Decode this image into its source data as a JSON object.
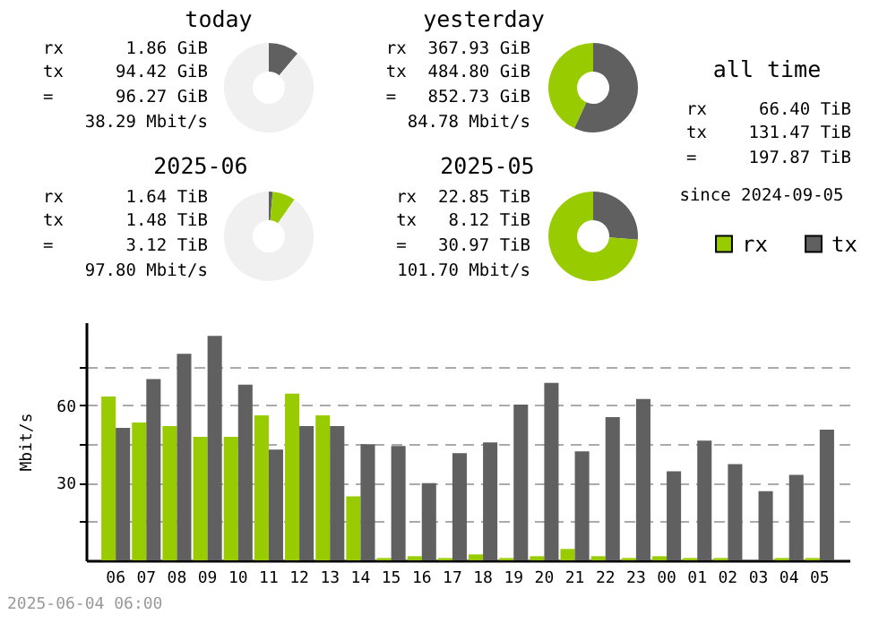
{
  "chart_data": [
    {
      "type": "donut",
      "title": "today",
      "categories": [
        null,
        null,
        null
      ],
      "values": [
        11.1,
        null,
        88.7
      ],
      "colors": [
        "#606060",
        "#99cc00",
        "#f0f0f0"
      ],
      "annotations": [
        "rx",
        "1.86 GiB",
        "tx",
        "94.42 GiB",
        "=",
        "96.27 GiB",
        "38.29 Mbit/s"
      ]
    },
    {
      "type": "donut",
      "title": "yesterday",
      "categories": [
        null,
        null
      ],
      "values": [
        56.9,
        43.1
      ],
      "colors": [
        "#606060",
        "#99cc00"
      ],
      "annotations": [
        "rx",
        "367.93 GiB",
        "tx",
        "484.80 GiB",
        "=",
        "852.73 GiB",
        "84.78 Mbit/s"
      ]
    },
    {
      "type": "other",
      "title": "all time",
      "annotations": [
        "rx",
        "66.40 TiB",
        "tx",
        "131.47 TiB",
        "=",
        "197.87 TiB",
        "since 2024-09-05"
      ]
    },
    {
      "type": "donut",
      "title": "2025-06",
      "categories": [
        null,
        null,
        null
      ],
      "values": [
        1.4,
        8.3,
        90.3
      ],
      "colors": [
        "#606060",
        "#99cc00",
        "#f0f0f0"
      ],
      "annotations": [
        "rx",
        "1.64 TiB",
        "tx",
        "1.48 TiB",
        "=",
        "3.12 TiB",
        "97.80 Mbit/s"
      ]
    },
    {
      "type": "donut",
      "title": "2025-05",
      "categories": [
        null,
        null
      ],
      "values": [
        26.2,
        73.8
      ],
      "colors": [
        "#606060",
        "#99cc00"
      ],
      "annotations": [
        "rx",
        "22.85 TiB",
        "tx",
        "8.12 TiB",
        "=",
        "30.97 TiB",
        "101.70 Mbit/s"
      ]
    },
    {
      "type": "bar",
      "ylabel": "Mbit/s",
      "categories": [
        "06",
        "07",
        "08",
        "09",
        "10",
        "11",
        "12",
        "13",
        "14",
        "15",
        "16",
        "17",
        "18",
        "19",
        "20",
        "21",
        "22",
        "23",
        "00",
        "01",
        "02",
        "03",
        "04",
        "05"
      ],
      "series": [
        {
          "name": "rx",
          "color": "#99cc00",
          "values": [
            63.3,
            53.3,
            51.9,
            47.7,
            47.7,
            56,
            64.4,
            56,
            24.7,
            0.9,
            1.6,
            0.9,
            2.3,
            0.9,
            1.6,
            4.4,
            1.6,
            0.9,
            1.6,
            0.9,
            0.9,
            0,
            0.9,
            0.9
          ]
        },
        {
          "name": "tx",
          "color": "#606060",
          "values": [
            51.2,
            70,
            79.8,
            86.7,
            67.9,
            42.8,
            51.9,
            51.9,
            44.9,
            44.2,
            29.8,
            41.4,
            45.6,
            60.2,
            68.6,
            42.1,
            55.3,
            62.3,
            34.4,
            46.3,
            37.2,
            26.7,
            33,
            50.5
          ]
        }
      ],
      "ylim": [
        0,
        92
      ],
      "yticks": [
        {
          "value": 15,
          "label": null
        },
        30,
        {
          "value": 45,
          "label": null
        },
        60,
        {
          "value": 75,
          "label": null
        }
      ],
      "grid": "y",
      "legend": "top right",
      "annotations": [
        "2025-06-04 06:00"
      ]
    }
  ]
}
